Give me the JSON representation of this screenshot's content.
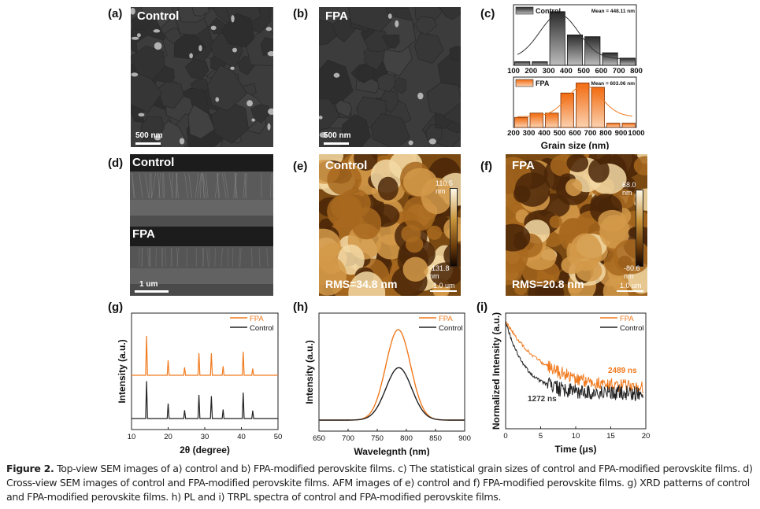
{
  "figure": {
    "caption_title": "Figure 2.",
    "caption_text": " Top-view SEM images of a) control and b) FPA-modified perovskite films. c) The statistical grain sizes of control and FPA-modified perovskite films. d) Cross-view SEM images of control and FPA-modified perovskite films. AFM images of e) control and f) FPA-modified perovskite films. g) XRD patterns of control and FPA-modified perovskite films. h) PL and i) TRPL spectra of control and FPA-modified perovskite films."
  },
  "colors": {
    "fpa": "#f07a1e",
    "control": "#222222",
    "afm_dark": "#3a1e05",
    "afm_light": "#f7e0b0"
  },
  "panels": {
    "a": {
      "label": "(a)",
      "title": "Control",
      "scale": "500 nm"
    },
    "b": {
      "label": "(b)",
      "title": "FPA",
      "scale": "500 nm"
    },
    "c": {
      "label": "(c)"
    },
    "d": {
      "label": "(d)",
      "title_top": "Control",
      "title_bottom": "FPA",
      "scale": "1 um"
    },
    "e": {
      "label": "(e)",
      "title": "Control",
      "rms": "RMS=34.8 nm",
      "cbar_max": "110.5 nm",
      "cbar_min": "-131.8 nm",
      "scale": "1.0 um"
    },
    "f": {
      "label": "(f)",
      "title": "FPA",
      "rms": "RMS=20.8 nm",
      "cbar_max": "68.0 nm",
      "cbar_min": "-80.6 nm",
      "scale": "1.0 um"
    },
    "g": {
      "label": "(g)"
    },
    "h": {
      "label": "(h)"
    },
    "i": {
      "label": "(i)"
    }
  },
  "chart_data": [
    {
      "id": "c-control",
      "type": "bar",
      "title": "",
      "legend": "Control",
      "annotation": "Mean = 448.11 nm",
      "categories": [
        "100-200",
        "200-300",
        "300-400",
        "400-500",
        "500-600",
        "600-700",
        "700-800"
      ],
      "x_ticks": [
        "100",
        "200",
        "300",
        "400",
        "500",
        "600",
        "700",
        "800"
      ],
      "values": [
        2,
        2,
        30,
        17,
        16,
        7,
        4
      ],
      "ylim": [
        0,
        33
      ],
      "fit": "gaussian",
      "xlabel": "",
      "ylabel": ""
    },
    {
      "id": "c-fpa",
      "type": "bar",
      "legend": "FPA",
      "annotation": "Mean = 603.06 nm",
      "categories": [
        "200-300",
        "300-400",
        "400-500",
        "500-600",
        "600-700",
        "700-800",
        "800-900",
        "900-1000"
      ],
      "x_ticks": [
        "200",
        "300",
        "400",
        "500",
        "600",
        "700",
        "800",
        "900",
        "1000"
      ],
      "values": [
        7,
        10,
        10,
        24,
        31,
        28,
        3,
        3
      ],
      "ylim": [
        0,
        34
      ],
      "fit": "gaussian",
      "xlabel": "Grain size (nm)",
      "ylabel": ""
    },
    {
      "id": "g",
      "type": "line",
      "title": "",
      "xlabel": "2θ (degree)",
      "ylabel": "Intensity (a.u.)",
      "xlim": [
        10,
        50
      ],
      "x_ticks": [
        "10",
        "20",
        "30",
        "40",
        "50"
      ],
      "legend": "top-right",
      "peaks_2theta": [
        14.1,
        20.0,
        24.5,
        28.4,
        31.8,
        35.0,
        40.5,
        43.1
      ],
      "series": [
        {
          "name": "FPA",
          "offset": 0.55,
          "heights": [
            1.0,
            0.38,
            0.2,
            0.56,
            0.56,
            0.23,
            0.6,
            0.17
          ]
        },
        {
          "name": "Control",
          "offset": 0.0,
          "heights": [
            0.95,
            0.38,
            0.21,
            0.6,
            0.57,
            0.23,
            0.66,
            0.2
          ]
        }
      ]
    },
    {
      "id": "h",
      "type": "line",
      "xlabel": "Wavelegnth (nm)",
      "ylabel": "Intensity (a.u.)",
      "xlim": [
        650,
        900
      ],
      "x_ticks": [
        "650",
        "700",
        "750",
        "800",
        "850",
        "900"
      ],
      "legend": "top-right",
      "series": [
        {
          "name": "FPA",
          "peak_nm": 786,
          "fwhm_nm": 50,
          "amplitude": 1.0
        },
        {
          "name": "Control",
          "peak_nm": 787,
          "fwhm_nm": 52,
          "amplitude": 0.58
        }
      ]
    },
    {
      "id": "i",
      "type": "line",
      "xlabel": "Time (μs)",
      "ylabel": "Normalized Intensity (a.u.)",
      "xlim": [
        0,
        20
      ],
      "x_ticks": [
        "0",
        "5",
        "10",
        "15",
        "20"
      ],
      "legend": "top-right",
      "series": [
        {
          "name": "FPA",
          "lifetime_label": "2489 ns",
          "lifetime_us": 2.489
        },
        {
          "name": "Control",
          "lifetime_label": "1272 ns",
          "lifetime_us": 1.272
        }
      ]
    }
  ]
}
